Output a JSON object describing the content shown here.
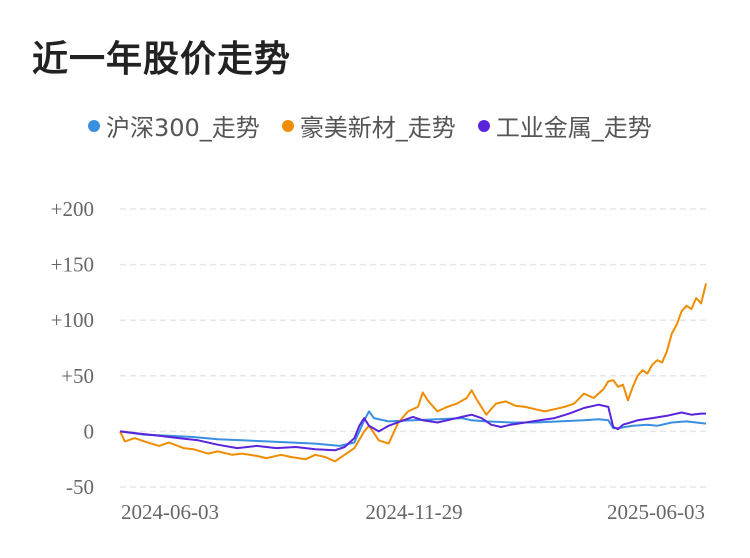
{
  "title": "近一年股价走势",
  "chart_data": {
    "type": "line",
    "x_ticks": [
      "2024-06-03",
      "2024-11-29",
      "2025-06-03"
    ],
    "x_range": [
      "2024-06-03",
      "2025-06-03"
    ],
    "y_ticks": [
      "+200",
      "+150",
      "+100",
      "+50",
      "0",
      "-50"
    ],
    "ylim": [
      -50,
      200
    ],
    "grid": true,
    "legend_placement": "top-left",
    "series": [
      {
        "name": "沪深300_走势",
        "color": "#3a8fe0",
        "points": [
          [
            0,
            0
          ],
          [
            5,
            -3
          ],
          [
            10,
            -4
          ],
          [
            15,
            -5
          ],
          [
            20,
            -7
          ],
          [
            25,
            -8
          ],
          [
            30,
            -9
          ],
          [
            35,
            -10
          ],
          [
            40,
            -11
          ],
          [
            45,
            -13
          ],
          [
            48,
            -10
          ],
          [
            50,
            10
          ],
          [
            51,
            18
          ],
          [
            52,
            12
          ],
          [
            55,
            9
          ],
          [
            60,
            10
          ],
          [
            65,
            11
          ],
          [
            70,
            12
          ],
          [
            72,
            10
          ],
          [
            75,
            9
          ],
          [
            80,
            8
          ],
          [
            85,
            8
          ],
          [
            90,
            9
          ],
          [
            95,
            10
          ],
          [
            98,
            11
          ],
          [
            100,
            10
          ],
          [
            101,
            3
          ],
          [
            102,
            3
          ],
          [
            105,
            5
          ],
          [
            108,
            6
          ],
          [
            110,
            5
          ],
          [
            113,
            8
          ],
          [
            116,
            9
          ],
          [
            120,
            7
          ]
        ]
      },
      {
        "name": "豪美新材_走势",
        "color": "#f08c00",
        "points": [
          [
            0,
            0
          ],
          [
            1,
            -9
          ],
          [
            3,
            -6
          ],
          [
            5,
            -9
          ],
          [
            8,
            -13
          ],
          [
            10,
            -10
          ],
          [
            13,
            -15
          ],
          [
            15,
            -16
          ],
          [
            18,
            -20
          ],
          [
            20,
            -18
          ],
          [
            23,
            -21
          ],
          [
            25,
            -20
          ],
          [
            28,
            -22
          ],
          [
            30,
            -24
          ],
          [
            33,
            -21
          ],
          [
            35,
            -23
          ],
          [
            38,
            -25
          ],
          [
            40,
            -21
          ],
          [
            42,
            -23
          ],
          [
            44,
            -27
          ],
          [
            46,
            -21
          ],
          [
            48,
            -15
          ],
          [
            50,
            0
          ],
          [
            51,
            5
          ],
          [
            53,
            -8
          ],
          [
            55,
            -11
          ],
          [
            57,
            8
          ],
          [
            59,
            18
          ],
          [
            61,
            22
          ],
          [
            62,
            35
          ],
          [
            63,
            28
          ],
          [
            65,
            18
          ],
          [
            67,
            22
          ],
          [
            69,
            25
          ],
          [
            71,
            30
          ],
          [
            72,
            37
          ],
          [
            73,
            29
          ],
          [
            75,
            15
          ],
          [
            77,
            25
          ],
          [
            79,
            27
          ],
          [
            81,
            23
          ],
          [
            83,
            22
          ],
          [
            85,
            20
          ],
          [
            87,
            18
          ],
          [
            89,
            20
          ],
          [
            91,
            22
          ],
          [
            93,
            25
          ],
          [
            95,
            34
          ],
          [
            97,
            30
          ],
          [
            99,
            38
          ],
          [
            100,
            45
          ],
          [
            101,
            46
          ],
          [
            102,
            40
          ],
          [
            103,
            42
          ],
          [
            104,
            28
          ],
          [
            105,
            40
          ],
          [
            106,
            50
          ],
          [
            107,
            55
          ],
          [
            108,
            52
          ],
          [
            109,
            60
          ],
          [
            110,
            64
          ],
          [
            111,
            62
          ],
          [
            112,
            72
          ],
          [
            113,
            88
          ],
          [
            114,
            96
          ],
          [
            115,
            108
          ],
          [
            116,
            113
          ],
          [
            117,
            110
          ],
          [
            118,
            120
          ],
          [
            119,
            115
          ],
          [
            120,
            133
          ]
        ]
      },
      {
        "name": "工业金属_走势",
        "color": "#5a23dc",
        "points": [
          [
            0,
            0
          ],
          [
            4,
            -2
          ],
          [
            8,
            -4
          ],
          [
            12,
            -6
          ],
          [
            16,
            -8
          ],
          [
            20,
            -12
          ],
          [
            24,
            -15
          ],
          [
            28,
            -13
          ],
          [
            32,
            -15
          ],
          [
            36,
            -14
          ],
          [
            40,
            -16
          ],
          [
            44,
            -17
          ],
          [
            46,
            -14
          ],
          [
            48,
            -6
          ],
          [
            49,
            5
          ],
          [
            50,
            12
          ],
          [
            51,
            5
          ],
          [
            53,
            0
          ],
          [
            55,
            5
          ],
          [
            58,
            10
          ],
          [
            60,
            13
          ],
          [
            62,
            10
          ],
          [
            65,
            8
          ],
          [
            68,
            11
          ],
          [
            70,
            13
          ],
          [
            72,
            15
          ],
          [
            74,
            12
          ],
          [
            76,
            6
          ],
          [
            78,
            4
          ],
          [
            80,
            6
          ],
          [
            83,
            8
          ],
          [
            86,
            10
          ],
          [
            89,
            12
          ],
          [
            92,
            16
          ],
          [
            95,
            21
          ],
          [
            98,
            24
          ],
          [
            100,
            22
          ],
          [
            101,
            4
          ],
          [
            102,
            2
          ],
          [
            103,
            6
          ],
          [
            106,
            10
          ],
          [
            109,
            12
          ],
          [
            112,
            14
          ],
          [
            115,
            17
          ],
          [
            117,
            15
          ],
          [
            119,
            16
          ],
          [
            120,
            16
          ]
        ]
      }
    ]
  }
}
